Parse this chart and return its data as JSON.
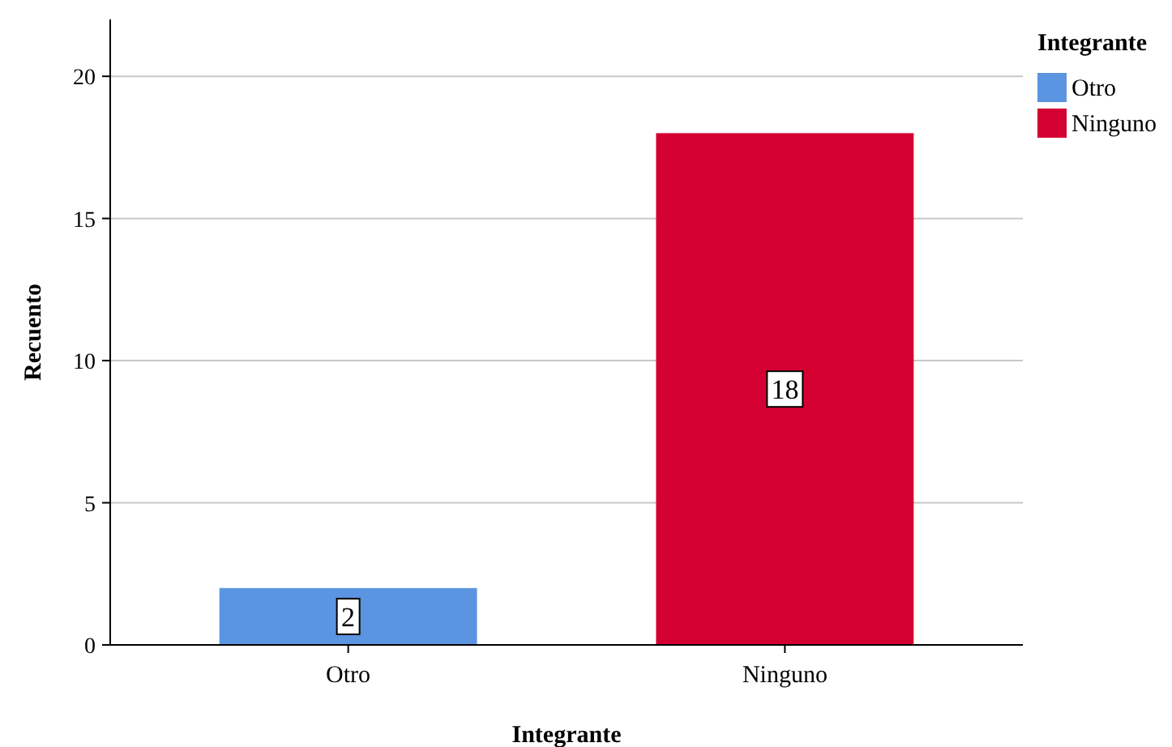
{
  "chart_data": {
    "type": "bar",
    "xlabel": "Integrante",
    "ylabel": "Recuento",
    "legend_title": "Integrante",
    "categories": [
      "Otro",
      "Ninguno"
    ],
    "series": [
      {
        "name": "Otro",
        "color": "#5b94e0",
        "values": [
          2,
          null
        ]
      },
      {
        "name": "Ninguno",
        "color": "#d50032",
        "values": [
          null,
          18
        ]
      }
    ],
    "ylim": [
      0,
      22
    ],
    "yticks": [
      0,
      5,
      10,
      15,
      20
    ],
    "grid": "y",
    "legend": "top right",
    "data_labels": true
  }
}
